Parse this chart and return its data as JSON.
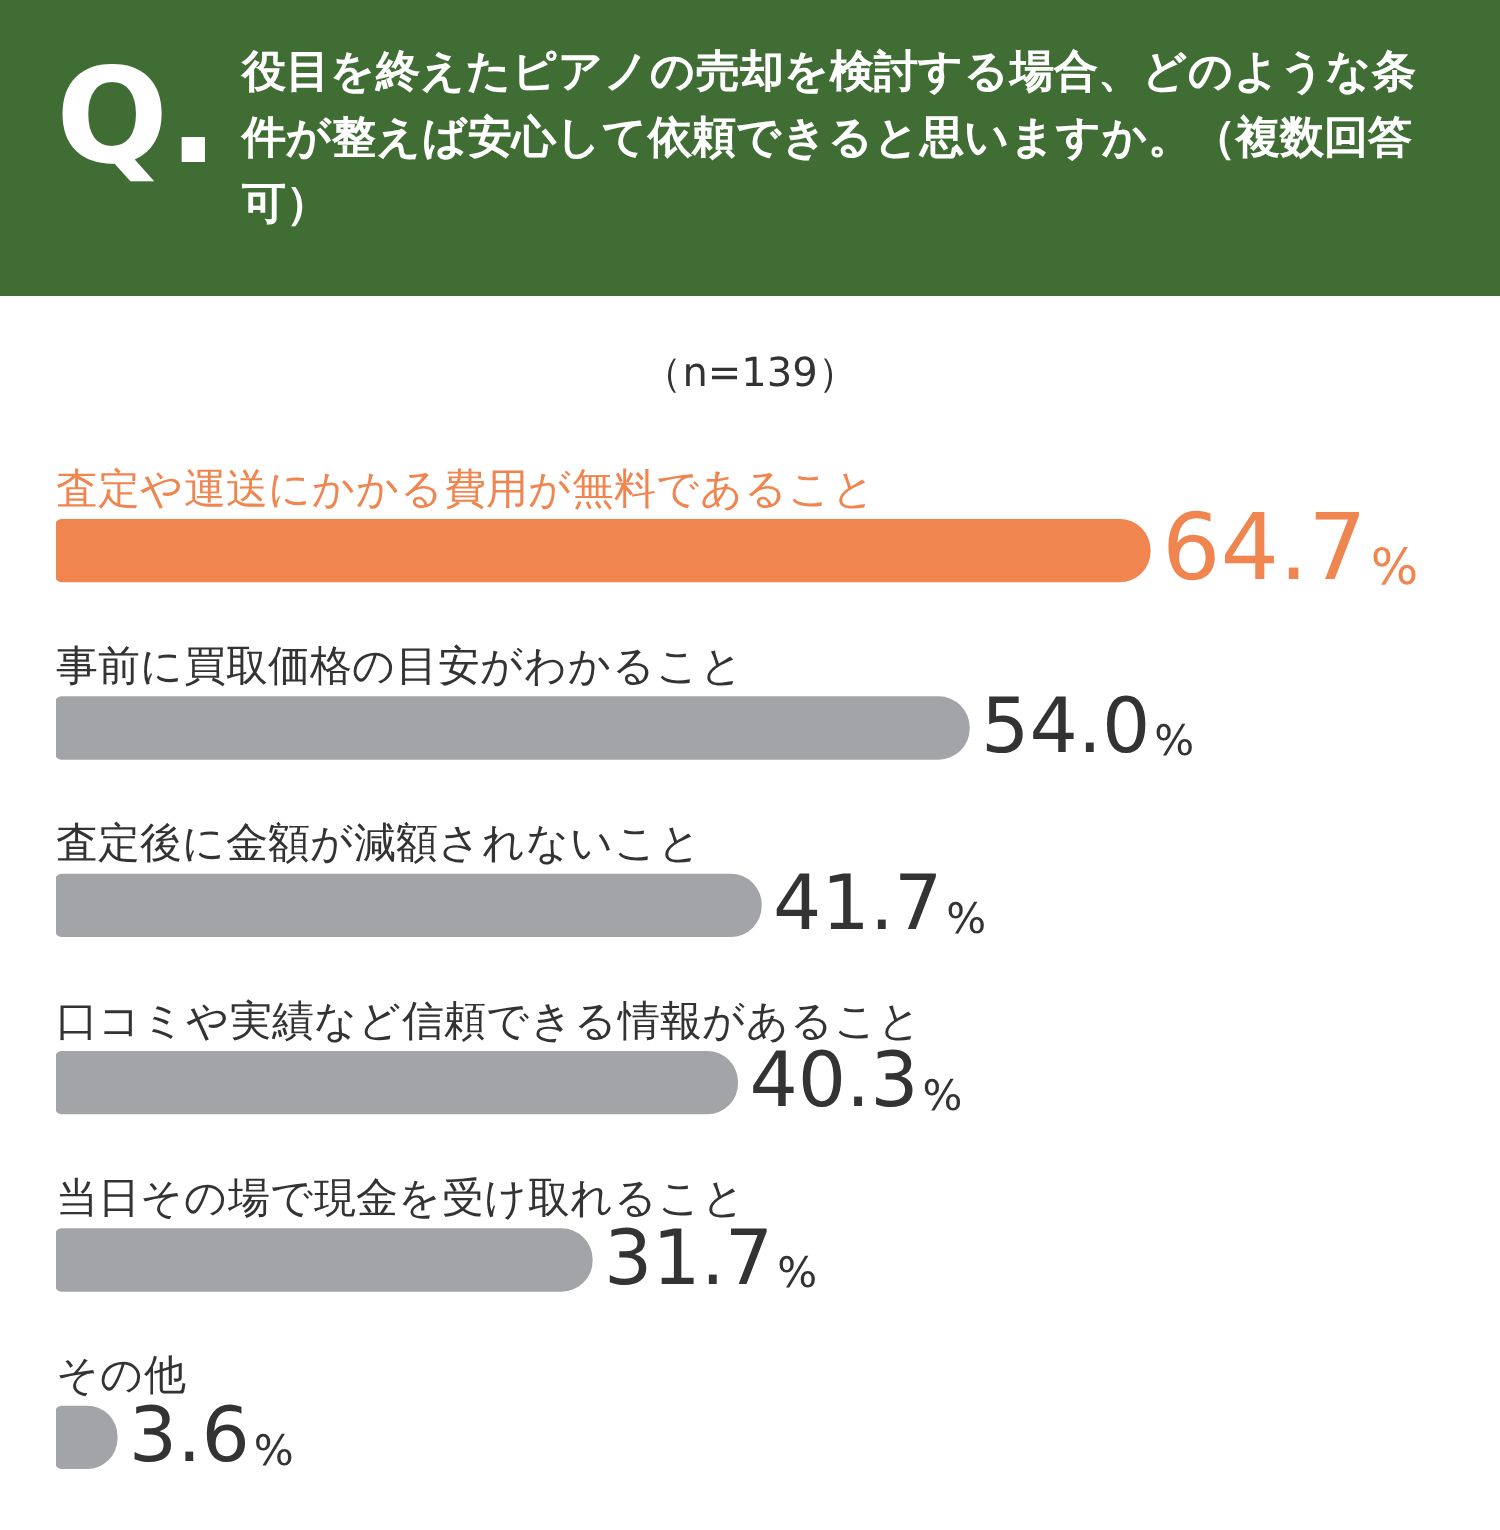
{
  "chart_data": {
    "type": "bar",
    "orientation": "horizontal",
    "title": "役目を終えたピアノの売却を検討する場合、どのような条件が整えば安心して依頼できると思いますか。（複数回答可）",
    "subtitle": "（n=139）",
    "annotations": [
      "Q."
    ],
    "categories": [
      "査定や運送にかかる費用が無料であること",
      "事前に買取価格の目安がわかること",
      "査定後に金額が減額されないこと",
      "口コミや実績など信頼できる情報があること",
      "当日その場で現金を受け取れること",
      "その他"
    ],
    "values": [
      64.7,
      54.0,
      41.7,
      40.3,
      31.7,
      3.6
    ],
    "colors": [
      "#f08550",
      "#a3a4a8",
      "#a3a4a8",
      "#a3a4a8",
      "#a3a4a8",
      "#a3a4a8"
    ],
    "value_labels": [
      "64.7%",
      "54.0%",
      "41.7%",
      "40.3%",
      "31.7%",
      "3.6%"
    ],
    "legend": false
  }
}
